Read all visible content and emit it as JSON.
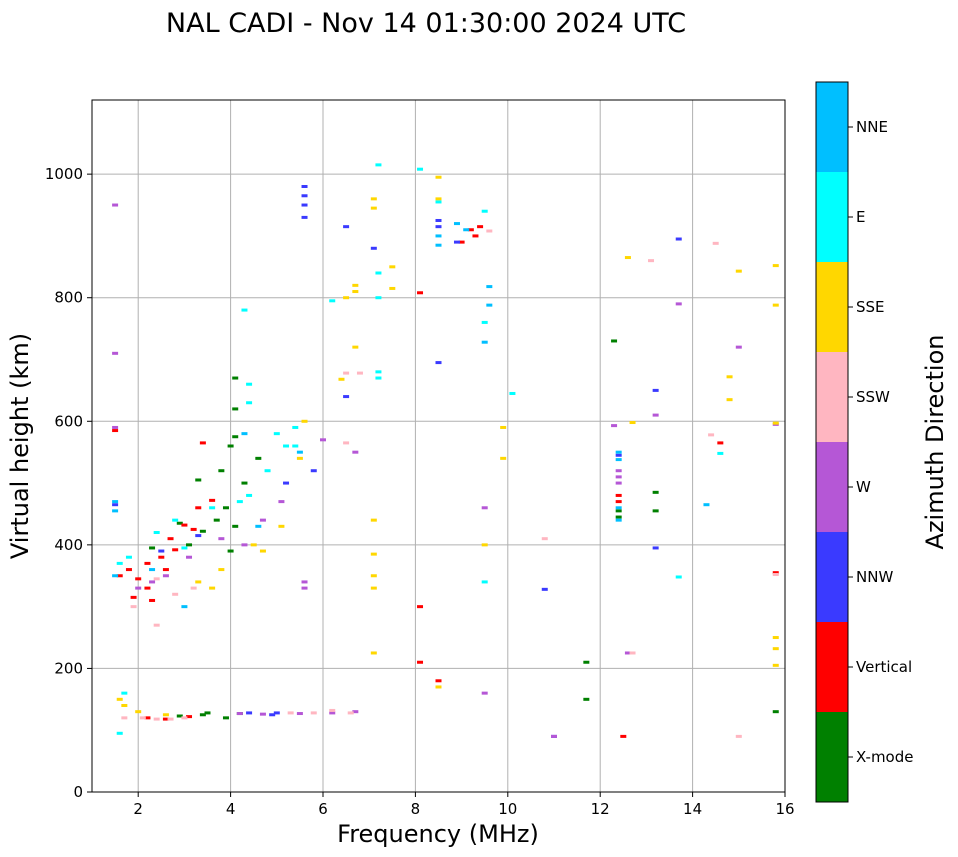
{
  "chart_data": {
    "type": "scatter",
    "title": "NAL CADI - Nov 14 01:30:00 2024 UTC",
    "xlabel": "Frequency (MHz)",
    "ylabel": "Virtual height (km)",
    "xlim": [
      1,
      16
    ],
    "ylim": [
      0,
      1120
    ],
    "xticks": [
      2,
      4,
      6,
      8,
      10,
      12,
      14,
      16
    ],
    "yticks": [
      0,
      200,
      400,
      600,
      800,
      1000
    ],
    "grid": true,
    "colorbar": {
      "label": "Azimuth Direction",
      "categories": [
        {
          "name": "X-mode",
          "color": "#008000"
        },
        {
          "name": "Vertical",
          "color": "#ff0000"
        },
        {
          "name": "NNW",
          "color": "#3a3aff"
        },
        {
          "name": "W",
          "color": "#b557d6"
        },
        {
          "name": "SSW",
          "color": "#ffb6c1"
        },
        {
          "name": "SSE",
          "color": "#ffd700"
        },
        {
          "name": "E",
          "color": "#00ffff"
        },
        {
          "name": "NNE",
          "color": "#00bfff"
        }
      ]
    },
    "series": [
      {
        "name": "X-mode",
        "points": [
          [
            2.9,
            123
          ],
          [
            3.4,
            125
          ],
          [
            3.5,
            128
          ],
          [
            3.9,
            120
          ],
          [
            4.2,
            127
          ],
          [
            2.3,
            395
          ],
          [
            2.9,
            435
          ],
          [
            3.1,
            400
          ],
          [
            3.4,
            422
          ],
          [
            3.7,
            440
          ],
          [
            3.9,
            460
          ],
          [
            4.0,
            390
          ],
          [
            4.1,
            430
          ],
          [
            4.3,
            500
          ],
          [
            3.8,
            520
          ],
          [
            4.0,
            560
          ],
          [
            4.1,
            575
          ],
          [
            4.1,
            620
          ],
          [
            4.1,
            670
          ],
          [
            4.6,
            540
          ],
          [
            3.3,
            505
          ],
          [
            11.7,
            210
          ],
          [
            11.7,
            150
          ],
          [
            12.3,
            730
          ],
          [
            13.2,
            485
          ],
          [
            13.2,
            455
          ],
          [
            15.8,
            130
          ],
          [
            12.4,
            455
          ],
          [
            12.4,
            445
          ]
        ]
      },
      {
        "name": "Vertical",
        "points": [
          [
            1.6,
            350
          ],
          [
            1.8,
            360
          ],
          [
            2.0,
            345
          ],
          [
            2.2,
            370
          ],
          [
            2.5,
            380
          ],
          [
            2.6,
            360
          ],
          [
            2.8,
            392
          ],
          [
            2.2,
            330
          ],
          [
            1.9,
            315
          ],
          [
            2.3,
            310
          ],
          [
            3.0,
            432
          ],
          [
            3.2,
            425
          ],
          [
            2.7,
            410
          ],
          [
            3.3,
            460
          ],
          [
            3.6,
            472
          ],
          [
            1.5,
            585
          ],
          [
            2.2,
            120
          ],
          [
            2.6,
            118
          ],
          [
            3.1,
            122
          ],
          [
            8.1,
            300
          ],
          [
            8.1,
            210
          ],
          [
            8.5,
            180
          ],
          [
            8.1,
            808
          ],
          [
            9.0,
            890
          ],
          [
            9.3,
            900
          ],
          [
            9.4,
            915
          ],
          [
            9.2,
            910
          ],
          [
            12.5,
            90
          ],
          [
            12.4,
            480
          ],
          [
            12.4,
            470
          ],
          [
            14.6,
            565
          ],
          [
            15.8,
            355
          ],
          [
            3.4,
            565
          ]
        ]
      },
      {
        "name": "NNW",
        "points": [
          [
            5.6,
            980
          ],
          [
            5.6,
            965
          ],
          [
            5.6,
            950
          ],
          [
            5.6,
            930
          ],
          [
            7.1,
            880
          ],
          [
            1.5,
            465
          ],
          [
            2.5,
            390
          ],
          [
            3.3,
            415
          ],
          [
            4.9,
            125
          ],
          [
            5.0,
            128
          ],
          [
            4.4,
            128
          ],
          [
            5.8,
            520
          ],
          [
            5.2,
            500
          ],
          [
            6.5,
            915
          ],
          [
            6.5,
            640
          ],
          [
            8.5,
            695
          ],
          [
            8.5,
            925
          ],
          [
            8.5,
            915
          ],
          [
            8.9,
            890
          ],
          [
            11.0,
            90
          ],
          [
            10.8,
            328
          ],
          [
            13.2,
            650
          ],
          [
            13.2,
            395
          ],
          [
            13.7,
            895
          ],
          [
            12.4,
            545
          ]
        ]
      },
      {
        "name": "W",
        "points": [
          [
            1.5,
            950
          ],
          [
            1.5,
            710
          ],
          [
            1.5,
            590
          ],
          [
            2.0,
            330
          ],
          [
            2.3,
            340
          ],
          [
            2.6,
            350
          ],
          [
            3.1,
            380
          ],
          [
            3.8,
            410
          ],
          [
            4.3,
            400
          ],
          [
            4.7,
            440
          ],
          [
            5.1,
            470
          ],
          [
            4.2,
            127
          ],
          [
            4.7,
            126
          ],
          [
            5.5,
            127
          ],
          [
            6.2,
            128
          ],
          [
            6.7,
            130
          ],
          [
            5.6,
            330
          ],
          [
            5.6,
            340
          ],
          [
            6.0,
            570
          ],
          [
            6.7,
            550
          ],
          [
            9.5,
            460
          ],
          [
            9.5,
            160
          ],
          [
            11.0,
            90
          ],
          [
            12.4,
            520
          ],
          [
            12.4,
            500
          ],
          [
            12.4,
            510
          ],
          [
            12.3,
            593
          ],
          [
            12.6,
            225
          ],
          [
            13.2,
            610
          ],
          [
            13.7,
            790
          ],
          [
            15.0,
            720
          ],
          [
            15.8,
            595
          ]
        ]
      },
      {
        "name": "SSW",
        "points": [
          [
            1.7,
            120
          ],
          [
            2.1,
            120
          ],
          [
            2.4,
            118
          ],
          [
            2.7,
            118
          ],
          [
            3.0,
            120
          ],
          [
            5.3,
            128
          ],
          [
            5.8,
            128
          ],
          [
            6.2,
            132
          ],
          [
            6.6,
            128
          ],
          [
            1.9,
            300
          ],
          [
            2.4,
            270
          ],
          [
            2.8,
            320
          ],
          [
            3.2,
            330
          ],
          [
            6.5,
            565
          ],
          [
            6.5,
            678
          ],
          [
            6.8,
            678
          ],
          [
            10.8,
            410
          ],
          [
            12.7,
            225
          ],
          [
            13.1,
            860
          ],
          [
            14.4,
            578
          ],
          [
            14.5,
            888
          ],
          [
            15.0,
            90
          ],
          [
            15.8,
            352
          ],
          [
            8.5,
            170
          ],
          [
            9.6,
            908
          ],
          [
            2.4,
            345
          ]
        ]
      },
      {
        "name": "SSE",
        "points": [
          [
            1.6,
            150
          ],
          [
            1.7,
            140
          ],
          [
            2.0,
            130
          ],
          [
            2.6,
            125
          ],
          [
            3.3,
            340
          ],
          [
            3.8,
            360
          ],
          [
            4.7,
            390
          ],
          [
            5.1,
            430
          ],
          [
            5.5,
            540
          ],
          [
            5.6,
            600
          ],
          [
            7.1,
            960
          ],
          [
            7.1,
            945
          ],
          [
            6.7,
            820
          ],
          [
            6.7,
            810
          ],
          [
            6.5,
            800
          ],
          [
            6.7,
            720
          ],
          [
            6.4,
            668
          ],
          [
            7.1,
            440
          ],
          [
            7.1,
            385
          ],
          [
            7.1,
            350
          ],
          [
            7.1,
            330
          ],
          [
            7.1,
            225
          ],
          [
            7.5,
            850
          ],
          [
            7.5,
            815
          ],
          [
            8.5,
            995
          ],
          [
            8.5,
            960
          ],
          [
            8.5,
            170
          ],
          [
            9.9,
            590
          ],
          [
            9.9,
            540
          ],
          [
            9.5,
            400
          ],
          [
            12.6,
            865
          ],
          [
            12.7,
            598
          ],
          [
            14.8,
            672
          ],
          [
            14.8,
            635
          ],
          [
            15.0,
            843
          ],
          [
            15.8,
            852
          ],
          [
            15.8,
            788
          ],
          [
            15.8,
            597
          ],
          [
            15.8,
            250
          ],
          [
            15.8,
            232
          ],
          [
            15.8,
            205
          ],
          [
            3.6,
            330
          ],
          [
            4.5,
            400
          ]
        ]
      },
      {
        "name": "E",
        "points": [
          [
            1.6,
            95
          ],
          [
            1.7,
            160
          ],
          [
            1.6,
            370
          ],
          [
            1.8,
            380
          ],
          [
            2.4,
            420
          ],
          [
            2.8,
            440
          ],
          [
            3.6,
            460
          ],
          [
            4.2,
            470
          ],
          [
            4.4,
            480
          ],
          [
            4.8,
            520
          ],
          [
            5.2,
            560
          ],
          [
            5.4,
            590
          ],
          [
            4.3,
            780
          ],
          [
            4.4,
            660
          ],
          [
            4.4,
            630
          ],
          [
            5.4,
            560
          ],
          [
            7.2,
            1015
          ],
          [
            7.2,
            840
          ],
          [
            7.2,
            800
          ],
          [
            7.2,
            680
          ],
          [
            7.2,
            670
          ],
          [
            8.1,
            1008
          ],
          [
            8.5,
            955
          ],
          [
            9.5,
            940
          ],
          [
            9.5,
            760
          ],
          [
            9.5,
            340
          ],
          [
            10.1,
            645
          ],
          [
            13.7,
            348
          ],
          [
            14.6,
            548
          ],
          [
            6.2,
            795
          ],
          [
            5.0,
            580
          ],
          [
            3.0,
            395
          ]
        ]
      },
      {
        "name": "NNE",
        "points": [
          [
            1.5,
            455
          ],
          [
            1.5,
            470
          ],
          [
            1.5,
            350
          ],
          [
            2.3,
            360
          ],
          [
            4.3,
            580
          ],
          [
            8.5,
            885
          ],
          [
            8.5,
            900
          ],
          [
            8.9,
            920
          ],
          [
            9.1,
            910
          ],
          [
            9.6,
            818
          ],
          [
            9.5,
            728
          ],
          [
            9.6,
            788
          ],
          [
            12.4,
            550
          ],
          [
            12.4,
            538
          ],
          [
            12.4,
            460
          ],
          [
            12.4,
            440
          ],
          [
            14.3,
            465
          ],
          [
            5.5,
            550
          ],
          [
            4.6,
            430
          ],
          [
            3.0,
            300
          ]
        ]
      }
    ]
  }
}
